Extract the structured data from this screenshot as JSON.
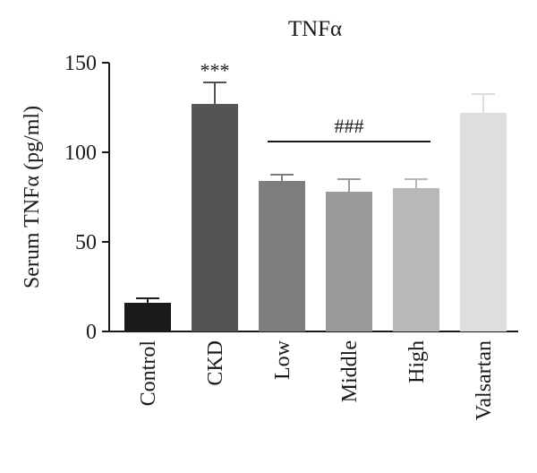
{
  "chart_data": {
    "type": "bar",
    "title": "TNFα",
    "ylabel": "Serum TNFα (pg/ml)",
    "xlabel": "",
    "ylim": [
      0,
      150
    ],
    "yticks": [
      0,
      50,
      100,
      150
    ],
    "categories": [
      "Control",
      "CKD",
      "Low",
      "Middle",
      "High",
      "Valsartan"
    ],
    "values": [
      16,
      127,
      84,
      78,
      80,
      122
    ],
    "errors": [
      2.5,
      12,
      3.5,
      7,
      5,
      10.5
    ],
    "colors": [
      "#1b1b1b",
      "#545454",
      "#7d7d7d",
      "#9b9b9b",
      "#b8b8b8",
      "#dedede"
    ],
    "annotations": {
      "ckd_marker": "***",
      "group_marker": "###",
      "group_marker_span": [
        "Low",
        "High"
      ],
      "group_marker_value": 106
    },
    "grid": false,
    "legend": "none"
  }
}
